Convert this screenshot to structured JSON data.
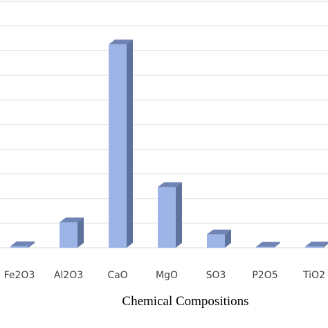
{
  "chart_data": {
    "type": "bar",
    "style": "3d-column",
    "categories": [
      "Fe2O3",
      "Al2O3",
      "CaO",
      "MgO",
      "SO3",
      "P2O5",
      "TiO2"
    ],
    "values": [
      0.6,
      10.3,
      82.5,
      24.6,
      5.4,
      0.4,
      0.5
    ],
    "ylim": [
      0,
      100
    ],
    "gridlines": true,
    "xlabel": "Chemical Compositions",
    "ylabel": "",
    "title": "",
    "colors": {
      "bar_front": "#9db4e6",
      "bar_side": "#5d739e",
      "bar_top": "#7085b4",
      "gridline": "#d9d9d9",
      "tick_text": "#404040"
    }
  }
}
